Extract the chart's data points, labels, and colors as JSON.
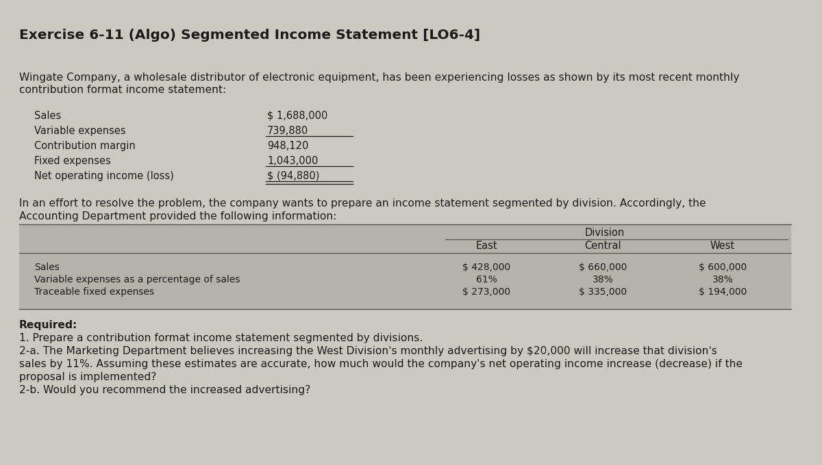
{
  "title": "Exercise 6-11 (Algo) Segmented Income Statement [LO6-4]",
  "bg_color": "#cccac0",
  "text_color": "#1a1a1a",
  "intro_text_line1": "Wingate Company, a wholesale distributor of electronic equipment, has been experiencing losses as shown by its most recent monthly",
  "intro_text_line2": "contribution format income statement:",
  "income_labels": [
    "Sales",
    "Variable expenses",
    "Contribution margin",
    "Fixed expenses",
    "Net operating income (loss)"
  ],
  "income_values": [
    "$ 1,688,000",
    "739,880",
    "948,120",
    "1,043,000",
    "$ (94,880)"
  ],
  "underline_after_idx": [
    1,
    3
  ],
  "double_underline_idx": 4,
  "transition_line1": "In an effort to resolve the problem, the company wants to prepare an income statement segmented by division. Accordingly, the",
  "transition_line2": "Accounting Department provided the following information:",
  "table_bg": "#b0ae a4",
  "div_header": "Division",
  "col_headers": [
    "East",
    "Central",
    "West"
  ],
  "row_labels": [
    "Sales",
    "Variable expenses as a percentage of sales",
    "Traceable fixed expenses"
  ],
  "table_data": [
    [
      "$ 428,000",
      "$ 660,000",
      "$ 600,000"
    ],
    [
      "61%",
      "38%",
      "38%"
    ],
    [
      "$ 273,000",
      "$ 335,000",
      "$ 194,000"
    ]
  ],
  "required_label": "Required:",
  "req1": "1. Prepare a contribution format income statement segmented by divisions.",
  "req2a_1": "2-a. The Marketing Department believes increasing the West Division's monthly advertising by $20,000 will increase that division's",
  "req2a_2": "sales by 11%. Assuming these estimates are accurate, how much would the company's net operating income increase (decrease) if the",
  "req2a_3": "proposal is implemented?",
  "req2b": "2-b. Would you recommend the increased advertising?"
}
